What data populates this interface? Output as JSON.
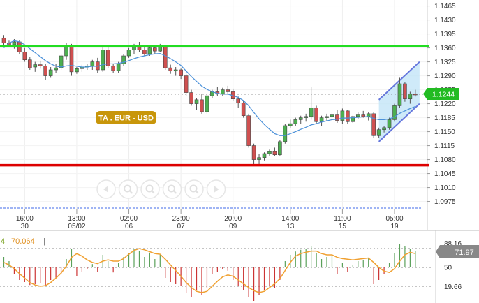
{
  "chart_data": [
    {
      "type": "candlestick",
      "instrument_label": "TA . EUR - USD",
      "current_price": "1.1244",
      "y_ticks": [
        "1.1465",
        "1.1430",
        "1.1395",
        "1.1360",
        "1.1325",
        "1.1290",
        "1.1255",
        "1.1220",
        "1.1185",
        "1.1150",
        "1.1115",
        "1.1080",
        "1.1045",
        "1.1010",
        "1.0975"
      ],
      "ylim": [
        1.0955,
        1.148
      ],
      "x_ticks": [
        {
          "time": "16:00",
          "date": "30"
        },
        {
          "time": "13:00",
          "date": "05/02"
        },
        {
          "time": "02:00",
          "date": "06"
        },
        {
          "time": "23:00",
          "date": "07"
        },
        {
          "time": "20:00",
          "date": "09"
        },
        {
          "time": "14:00",
          "date": "13"
        },
        {
          "time": "11:00",
          "date": "15"
        },
        {
          "time": "05:00",
          "date": "19"
        }
      ],
      "horizontal_lines": [
        {
          "level": 1.1365,
          "color": "#22dd22"
        },
        {
          "level": 1.1066,
          "color": "#dd0000"
        },
        {
          "level": 1.1244,
          "color": "#777777",
          "style": "dotted"
        }
      ],
      "ohlc": [
        [
          1.1385,
          1.1392,
          1.1365,
          1.1372
        ],
        [
          1.1372,
          1.1378,
          1.1362,
          1.1366
        ],
        [
          1.1368,
          1.1382,
          1.1358,
          1.1375
        ],
        [
          1.1375,
          1.138,
          1.1345,
          1.135
        ],
        [
          1.135,
          1.136,
          1.1325,
          1.133
        ],
        [
          1.133,
          1.1338,
          1.1305,
          1.131
        ],
        [
          1.1312,
          1.1325,
          1.13,
          1.1318
        ],
        [
          1.1318,
          1.1328,
          1.1308,
          1.1315
        ],
        [
          1.1315,
          1.132,
          1.128,
          1.129
        ],
        [
          1.129,
          1.1312,
          1.1285,
          1.1305
        ],
        [
          1.1305,
          1.132,
          1.1298,
          1.131
        ],
        [
          1.131,
          1.1345,
          1.1305,
          1.134
        ],
        [
          1.134,
          1.1372,
          1.133,
          1.1365
        ],
        [
          1.1365,
          1.137,
          1.129,
          1.13
        ],
        [
          1.13,
          1.1312,
          1.1295,
          1.1308
        ],
        [
          1.1308,
          1.1318,
          1.13,
          1.1312
        ],
        [
          1.1312,
          1.132,
          1.1305,
          1.1315
        ],
        [
          1.1315,
          1.133,
          1.1305,
          1.1325
        ],
        [
          1.1325,
          1.1335,
          1.1298,
          1.1305
        ],
        [
          1.1305,
          1.1365,
          1.13,
          1.1355
        ],
        [
          1.1355,
          1.1362,
          1.131,
          1.1315
        ],
        [
          1.1315,
          1.132,
          1.1298,
          1.1303
        ],
        [
          1.1303,
          1.1325,
          1.1298,
          1.132
        ],
        [
          1.132,
          1.1345,
          1.1315,
          1.134
        ],
        [
          1.134,
          1.136,
          1.1335,
          1.1355
        ],
        [
          1.1355,
          1.137,
          1.1345,
          1.1362
        ],
        [
          1.1362,
          1.1375,
          1.135,
          1.1355
        ],
        [
          1.1355,
          1.1362,
          1.134,
          1.1345
        ],
        [
          1.1345,
          1.1365,
          1.134,
          1.136
        ],
        [
          1.136,
          1.1368,
          1.1345,
          1.1352
        ],
        [
          1.1352,
          1.137,
          1.135,
          1.1362
        ],
        [
          1.1362,
          1.1368,
          1.1305,
          1.131
        ],
        [
          1.131,
          1.1318,
          1.1295,
          1.1302
        ],
        [
          1.1302,
          1.1312,
          1.129,
          1.1305
        ],
        [
          1.1305,
          1.1308,
          1.1282,
          1.129
        ],
        [
          1.129,
          1.1295,
          1.124,
          1.1248
        ],
        [
          1.1248,
          1.1255,
          1.1215,
          1.122
        ],
        [
          1.122,
          1.1235,
          1.1205,
          1.123
        ],
        [
          1.123,
          1.1245,
          1.1195,
          1.12
        ],
        [
          1.12,
          1.1245,
          1.1195,
          1.124
        ],
        [
          1.124,
          1.1255,
          1.1235,
          1.125
        ],
        [
          1.125,
          1.1262,
          1.124,
          1.1245
        ],
        [
          1.1245,
          1.126,
          1.124,
          1.1255
        ],
        [
          1.1255,
          1.1265,
          1.1245,
          1.125
        ],
        [
          1.125,
          1.1258,
          1.1228,
          1.1232
        ],
        [
          1.1232,
          1.1238,
          1.121,
          1.1222
        ],
        [
          1.1222,
          1.1228,
          1.1185,
          1.119
        ],
        [
          1.119,
          1.1195,
          1.111,
          1.1115
        ],
        [
          1.1115,
          1.112,
          1.1065,
          1.108
        ],
        [
          1.108,
          1.1095,
          1.1068,
          1.1085
        ],
        [
          1.1085,
          1.1098,
          1.1078,
          1.1095
        ],
        [
          1.1095,
          1.1105,
          1.109,
          1.11
        ],
        [
          1.11,
          1.111,
          1.1088,
          1.1092
        ],
        [
          1.1092,
          1.113,
          1.109,
          1.1125
        ],
        [
          1.1125,
          1.117,
          1.112,
          1.1165
        ],
        [
          1.1165,
          1.118,
          1.116,
          1.117
        ],
        [
          1.117,
          1.1185,
          1.1165,
          1.118
        ],
        [
          1.118,
          1.119,
          1.117,
          1.1185
        ],
        [
          1.1185,
          1.1195,
          1.1175,
          1.1188
        ],
        [
          1.1188,
          1.1262,
          1.118,
          1.121
        ],
        [
          1.121,
          1.1215,
          1.117,
          1.1175
        ],
        [
          1.1175,
          1.119,
          1.1165,
          1.1185
        ],
        [
          1.1185,
          1.1195,
          1.1178,
          1.1188
        ],
        [
          1.1188,
          1.12,
          1.118,
          1.1192
        ],
        [
          1.1192,
          1.1205,
          1.1172,
          1.1178
        ],
        [
          1.1178,
          1.1208,
          1.117,
          1.1202
        ],
        [
          1.1202,
          1.1205,
          1.117,
          1.1175
        ],
        [
          1.1175,
          1.119,
          1.1172,
          1.1188
        ],
        [
          1.1188,
          1.1198,
          1.1182,
          1.1192
        ],
        [
          1.1192,
          1.1202,
          1.1185,
          1.1188
        ],
        [
          1.1188,
          1.12,
          1.1178,
          1.1195
        ],
        [
          1.1195,
          1.12,
          1.1135,
          1.114
        ],
        [
          1.114,
          1.116,
          1.1135,
          1.1155
        ],
        [
          1.1155,
          1.1165,
          1.1148,
          1.116
        ],
        [
          1.116,
          1.1185,
          1.1155,
          1.118
        ],
        [
          1.118,
          1.122,
          1.1175,
          1.1215
        ],
        [
          1.1215,
          1.1285,
          1.121,
          1.127
        ],
        [
          1.127,
          1.1275,
          1.1225,
          1.1232
        ],
        [
          1.1232,
          1.125,
          1.122,
          1.1245
        ],
        [
          1.1245,
          1.1255,
          1.1238,
          1.1242
        ]
      ],
      "moving_average": [
        1.136,
        1.1372,
        1.1378,
        1.1375,
        1.1368,
        1.1358,
        1.1348,
        1.1338,
        1.1328,
        1.132,
        1.1314,
        1.1312,
        1.1315,
        1.1316,
        1.1314,
        1.1312,
        1.1312,
        1.1314,
        1.1314,
        1.1318,
        1.132,
        1.132,
        1.1321,
        1.1324,
        1.1328,
        1.1333,
        1.1337,
        1.134,
        1.1343,
        1.1345,
        1.1346,
        1.134,
        1.1333,
        1.1325,
        1.1316,
        1.1302,
        1.1288,
        1.1276,
        1.1264,
        1.1256,
        1.125,
        1.1246,
        1.1244,
        1.1244,
        1.124,
        1.1236,
        1.1228,
        1.1215,
        1.1198,
        1.1182,
        1.1168,
        1.1156,
        1.1145,
        1.114,
        1.114,
        1.1145,
        1.115,
        1.1156,
        1.1161,
        1.1167,
        1.117,
        1.1174,
        1.1177,
        1.118,
        1.1181,
        1.1184,
        1.1184,
        1.1185,
        1.1186,
        1.1187,
        1.1188,
        1.1183,
        1.118,
        1.118,
        1.1182,
        1.1187,
        1.1196,
        1.1202,
        1.1208,
        1.1213
      ],
      "channel": {
        "start_index": 72,
        "end_index": 79,
        "lower_start": 1.1125,
        "upper_start": 1.123,
        "lower_end": 1.122,
        "upper_end": 1.1325
      }
    },
    {
      "type": "oscillator",
      "series_number": "4",
      "value_label": "70.064",
      "current_value": "71.97",
      "y_ticks": [
        "88.16",
        "50",
        "19.66"
      ],
      "levels": [
        80,
        50,
        20
      ],
      "histogram": [
        25,
        15,
        -15,
        -30,
        -35,
        -42,
        -40,
        -38,
        -45,
        -30,
        -25,
        -15,
        20,
        45,
        -20,
        -10,
        -5,
        8,
        -10,
        30,
        15,
        -12,
        10,
        25,
        35,
        45,
        40,
        25,
        35,
        20,
        30,
        -25,
        -35,
        -40,
        -45,
        -60,
        -70,
        -55,
        -65,
        -50,
        -15,
        -10,
        -5,
        -8,
        -30,
        -45,
        -55,
        -70,
        -80,
        -65,
        -55,
        -45,
        -50,
        -30,
        15,
        30,
        38,
        42,
        45,
        50,
        35,
        20,
        25,
        30,
        -15,
        10,
        -10,
        5,
        15,
        18,
        22,
        -40,
        -30,
        -15,
        10,
        35,
        55,
        50,
        45,
        40
      ],
      "line": [
        58,
        54,
        48,
        40,
        33,
        26,
        22,
        20,
        21,
        26,
        33,
        41,
        52,
        66,
        72,
        68,
        62,
        58,
        56,
        60,
        62,
        60,
        60,
        64,
        71,
        77,
        80,
        78,
        75,
        72,
        71,
        63,
        54,
        45,
        36,
        26,
        18,
        12,
        10,
        12,
        20,
        28,
        35,
        38,
        36,
        30,
        24,
        18,
        13,
        10,
        12,
        18,
        24,
        32,
        45,
        58,
        68,
        72,
        74,
        76,
        76,
        72,
        70,
        70,
        66,
        64,
        63,
        62,
        63,
        64,
        65,
        58,
        50,
        44,
        42,
        48,
        60,
        70,
        74,
        72
      ]
    }
  ]
}
